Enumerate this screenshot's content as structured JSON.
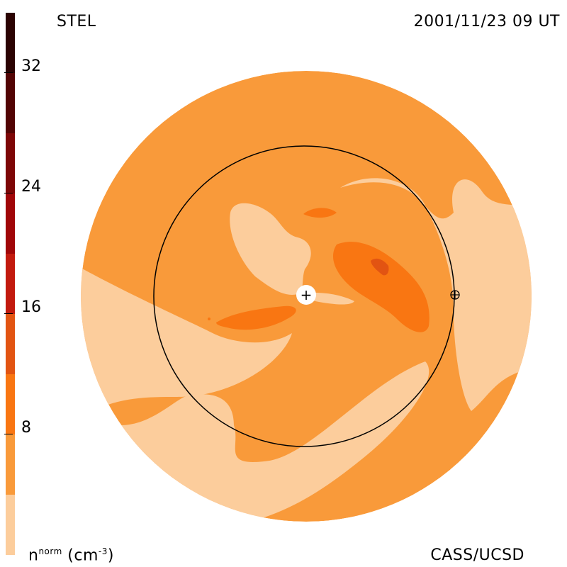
{
  "header": {
    "left_label": "STEL",
    "right_label": "2001/11/23 09 UT"
  },
  "footer": {
    "colorbar_label_main": "n",
    "colorbar_label_sup": "norm",
    "colorbar_label_unit_open": " (cm",
    "colorbar_label_unit_sup": "-3",
    "colorbar_label_unit_close": ")",
    "credit": "CASS/UCSD"
  },
  "colorbar": {
    "ticks": [
      "32",
      "24",
      "16",
      "8"
    ],
    "levels_low_to_high": [
      {
        "range": [
          0,
          4
        ],
        "color": "#fccd9c"
      },
      {
        "range": [
          4,
          8
        ],
        "color": "#f99a3a"
      },
      {
        "range": [
          8,
          12
        ],
        "color": "#f97612"
      },
      {
        "range": [
          12,
          16
        ],
        "color": "#e25412"
      },
      {
        "range": [
          16,
          20
        ],
        "color": "#c21a0e"
      },
      {
        "range": [
          20,
          24
        ],
        "color": "#a00608"
      },
      {
        "range": [
          24,
          28
        ],
        "color": "#7d0606"
      },
      {
        "range": [
          28,
          32
        ],
        "color": "#520404"
      },
      {
        "range": [
          32,
          36
        ],
        "color": "#2b0302"
      }
    ]
  },
  "markers": {
    "sun_symbol": "+",
    "earth_symbol": "⊕"
  }
}
